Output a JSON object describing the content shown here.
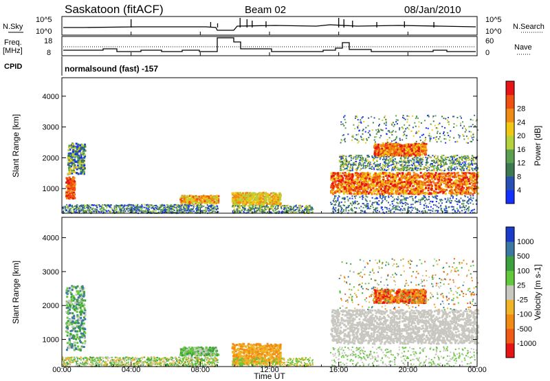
{
  "header": {
    "station": "Saskatoon (fitACF)",
    "beam": "Beam 02",
    "date": "08/Jan/2010"
  },
  "nsky_panel": {
    "left_label": "N.Sky",
    "right_label": "N.Search",
    "left_ticks": [
      "10^5",
      "10^0"
    ],
    "right_ticks": [
      "10^5",
      "10^0"
    ]
  },
  "freq_panel": {
    "left_label_1": "Freq.",
    "left_label_2": "[MHz]",
    "left_ticks": [
      "18",
      "8"
    ],
    "right_label": "Nave",
    "right_ticks": [
      "60",
      "0"
    ]
  },
  "cpid_panel": {
    "label": "CPID",
    "text": "normalsound (fast) -157"
  },
  "time_axis": {
    "label": "Time UT",
    "ticks": [
      "00:00",
      "04:00",
      "08:00",
      "12:00",
      "16:00",
      "20:00",
      "00:00"
    ]
  },
  "chart_data": [
    {
      "type": "heatmap",
      "name": "power",
      "ylabel": "Slant Range [km]",
      "yticks": [
        "1000",
        "2000",
        "3000",
        "4000"
      ],
      "ylim": [
        200,
        4600
      ],
      "xlim_hours": [
        0,
        24
      ],
      "colorbar": {
        "label": "Power [dB]",
        "ticks": [
          "4",
          "8",
          "12",
          "16",
          "20",
          "24",
          "28"
        ],
        "colors": [
          "#1430ff",
          "#2850b4",
          "#3c7850",
          "#5aa050",
          "#b4d23c",
          "#f0c814",
          "#f08c14",
          "#f05010",
          "#e61414"
        ]
      }
    },
    {
      "type": "heatmap",
      "name": "velocity",
      "ylabel": "Slant Range [km]",
      "yticks": [
        "1000",
        "2000",
        "3000",
        "4000"
      ],
      "ylim": [
        200,
        4600
      ],
      "xlim_hours": [
        0,
        24
      ],
      "colorbar": {
        "label": "Velocity [m s-1]",
        "ticks": [
          "1000",
          "500",
          "100",
          "25",
          "-25",
          "-100",
          "-500",
          "-1000"
        ],
        "colors": [
          "#1a3cc8",
          "#3c78a0",
          "#3ca03c",
          "#64c83c",
          "#c8c8c0",
          "#f0b428",
          "#f08c14",
          "#f05a14",
          "#e61414"
        ]
      }
    }
  ]
}
